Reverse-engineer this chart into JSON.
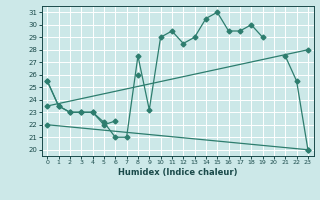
{
  "xlabel": "Humidex (Indice chaleur)",
  "bg_color": "#cce8e8",
  "line_color": "#2d7d6e",
  "grid_color": "#ffffff",
  "xlim": [
    -0.5,
    23.5
  ],
  "ylim": [
    19.5,
    31.5
  ],
  "yticks": [
    20,
    21,
    22,
    23,
    24,
    25,
    26,
    27,
    28,
    29,
    30,
    31
  ],
  "xticks": [
    0,
    1,
    2,
    3,
    4,
    5,
    6,
    7,
    8,
    9,
    10,
    11,
    12,
    13,
    14,
    15,
    16,
    17,
    18,
    19,
    20,
    21,
    22,
    23
  ],
  "line1_x": [
    0,
    1,
    2,
    3,
    4,
    5,
    6,
    7,
    8,
    9,
    10,
    11,
    12,
    13,
    14,
    15,
    16,
    17,
    18,
    19
  ],
  "line1_y": [
    25.5,
    23.5,
    23.0,
    23.0,
    23.0,
    22.2,
    21.0,
    21.0,
    27.5,
    23.2,
    29.0,
    29.5,
    28.5,
    29.0,
    30.5,
    31.0,
    29.5,
    29.5,
    30.0,
    29.0
  ],
  "line2_x": [
    0,
    23
  ],
  "line2_y": [
    23.5,
    28.0
  ],
  "line3_x": [
    0,
    23
  ],
  "line3_y": [
    22.0,
    20.0
  ],
  "line4_x": [
    0,
    1,
    2,
    3,
    4,
    5,
    6,
    8,
    21,
    22,
    23
  ],
  "line4_y": [
    25.5,
    23.5,
    23.0,
    23.0,
    23.0,
    22.0,
    22.3,
    26.0,
    27.5,
    25.5,
    20.0
  ]
}
